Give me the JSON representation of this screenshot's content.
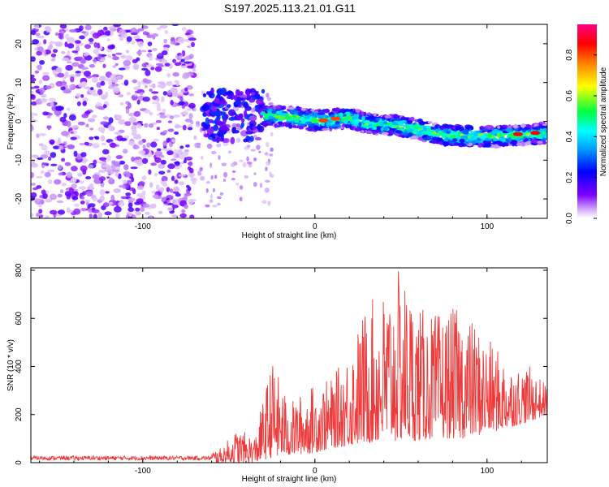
{
  "title": "S197.2025.113.21.01.G11",
  "chart_data": [
    {
      "type": "heatmap",
      "xlabel": "Height of straight line (km)",
      "ylabel": "Frequency (Hz)",
      "xlim": [
        -165,
        135
      ],
      "ylim": [
        -25,
        25
      ],
      "x_ticks": [
        -100,
        0,
        100
      ],
      "y_ticks": [
        -20,
        -10,
        0,
        10,
        20
      ],
      "colorbar": {
        "label": "Normalized spectral amplitude",
        "range": [
          0.0,
          0.95
        ],
        "ticks": [
          0.0,
          0.2,
          0.4,
          0.6,
          0.8
        ],
        "colormap": [
          "#ffffff",
          "#d8b8f8",
          "#8000ff",
          "#0000ff",
          "#00ffff",
          "#00ff40",
          "#ffff00",
          "#ff8000",
          "#ff0000",
          "#ff0080"
        ]
      },
      "features": {
        "noise_region_x": [
          -165,
          -70
        ],
        "onset_cluster": {
          "x": [
            -65,
            -30
          ],
          "y": [
            -5,
            8
          ]
        },
        "trace": [
          {
            "x": -30,
            "y": 1.5
          },
          {
            "x": -10,
            "y": 1.0
          },
          {
            "x": 0,
            "y": 0.2
          },
          {
            "x": 10,
            "y": 0.5
          },
          {
            "x": 20,
            "y": 1.0
          },
          {
            "x": 30,
            "y": -0.5
          },
          {
            "x": 45,
            "y": -1.0
          },
          {
            "x": 60,
            "y": -2.0
          },
          {
            "x": 75,
            "y": -3.5
          },
          {
            "x": 90,
            "y": -3.8
          },
          {
            "x": 105,
            "y": -4.0
          },
          {
            "x": 120,
            "y": -3.5
          },
          {
            "x": 135,
            "y": -3.0
          }
        ],
        "peak_points": [
          {
            "x": 5,
            "y": 0.2,
            "value": 0.85
          },
          {
            "x": 12,
            "y": 0.7,
            "value": 0.85
          },
          {
            "x": 118,
            "y": -3.3,
            "value": 0.9
          },
          {
            "x": 128,
            "y": -3.0,
            "value": 0.9
          }
        ]
      }
    },
    {
      "type": "line",
      "xlabel": "Height of straight line (km)",
      "ylabel": "SNR (10 * v/v)",
      "xlim": [
        -165,
        135
      ],
      "ylim": [
        0,
        810
      ],
      "x_ticks": [
        -100,
        0,
        100
      ],
      "y_ticks": [
        0,
        200,
        400,
        600,
        800
      ],
      "color": "#ee3a3a",
      "envelope": [
        {
          "x": -165,
          "low": 0,
          "high": 25
        },
        {
          "x": -70,
          "low": 0,
          "high": 35
        },
        {
          "x": -55,
          "low": 0,
          "high": 60
        },
        {
          "x": -45,
          "low": 0,
          "high": 140
        },
        {
          "x": -35,
          "low": 0,
          "high": 110
        },
        {
          "x": -25,
          "low": 20,
          "high": 430
        },
        {
          "x": -15,
          "low": 30,
          "high": 250
        },
        {
          "x": 0,
          "low": 40,
          "high": 330
        },
        {
          "x": 10,
          "low": 60,
          "high": 350
        },
        {
          "x": 20,
          "low": 70,
          "high": 480
        },
        {
          "x": 30,
          "low": 80,
          "high": 660
        },
        {
          "x": 40,
          "low": 80,
          "high": 720
        },
        {
          "x": 50,
          "low": 90,
          "high": 810
        },
        {
          "x": 60,
          "low": 90,
          "high": 650
        },
        {
          "x": 70,
          "low": 100,
          "high": 620
        },
        {
          "x": 85,
          "low": 100,
          "high": 650
        },
        {
          "x": 100,
          "low": 120,
          "high": 520
        },
        {
          "x": 115,
          "low": 150,
          "high": 400
        },
        {
          "x": 125,
          "low": 170,
          "high": 400
        },
        {
          "x": 135,
          "low": 200,
          "high": 320
        }
      ]
    }
  ]
}
